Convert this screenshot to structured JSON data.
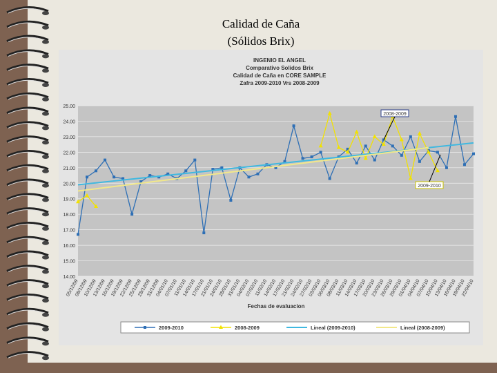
{
  "slide_title": [
    "Calidad de Caña",
    "(Sólidos Brix)"
  ],
  "chart_data": {
    "type": "line",
    "title": [
      "INGENIO EL ANGEL",
      "Comparativo Solidos Brix",
      "Calidad de Caña en CORE SAMPLE",
      "Zafra 2009-2010 Vrs 2008-2009"
    ],
    "x_label": "Fechas de evaluacion",
    "categories": [
      "05/12/09",
      "08/12/09",
      "10/12/09",
      "13/12/09",
      "16/12/09",
      "19/12/09",
      "22/12/09",
      "25/12/09",
      "28/12/09",
      "31/12/09",
      "04/01/10",
      "07/01/10",
      "11/01/10",
      "14/01/10",
      "17/01/10",
      "21/01/10",
      "24/01/10",
      "28/01/10",
      "31/01/10",
      "04/02/10",
      "07/02/10",
      "11/02/10",
      "14/02/10",
      "17/02/10",
      "21/02/10",
      "24/02/10",
      "27/02/10",
      "03/03/10",
      "06/03/10",
      "08/03/10",
      "11/03/10",
      "14/03/10",
      "17/03/10",
      "20/03/10",
      "23/03/10",
      "26/03/10",
      "29/03/10",
      "01/04/10",
      "04/04/10",
      "07/04/10",
      "10/04/10",
      "13/04/10",
      "16/04/10",
      "19/04/10",
      "22/04/10"
    ],
    "series": [
      {
        "name": "2009-2010",
        "color": "#2e6fb5",
        "marker": "square",
        "values": [
          16.7,
          20.4,
          20.8,
          21.5,
          20.4,
          20.3,
          18.0,
          20.1,
          20.5,
          20.4,
          20.6,
          20.3,
          20.8,
          21.5,
          16.8,
          20.9,
          21.0,
          18.9,
          21.0,
          20.4,
          20.6,
          21.2,
          21.0,
          21.4,
          23.7,
          21.6,
          21.7,
          22.0,
          20.3,
          21.7,
          22.2,
          21.3,
          22.4,
          21.5,
          22.8,
          22.4,
          21.8,
          23.0,
          21.4,
          22.1,
          22.0,
          21.0,
          24.3,
          21.2,
          21.9
        ]
      },
      {
        "name": "2008-2009",
        "color": "#f2e200",
        "marker": "triangle",
        "values": [
          18.8,
          19.2,
          18.5,
          null,
          null,
          null,
          null,
          null,
          null,
          null,
          null,
          null,
          null,
          null,
          null,
          null,
          null,
          null,
          null,
          null,
          null,
          null,
          null,
          null,
          null,
          null,
          null,
          22.4,
          24.5,
          22.3,
          22.0,
          23.3,
          21.6,
          23.0,
          22.5,
          24.3,
          22.8,
          20.3,
          23.2,
          22.0,
          20.8,
          null,
          null,
          null,
          null
        ]
      },
      {
        "name": "Lineal (2009-2010)",
        "color": "#3fb8e0",
        "trend": true,
        "x": [
          "05/12/09",
          "22/04/10"
        ],
        "values": [
          19.9,
          22.6
        ]
      },
      {
        "name": "Lineal (2008-2009)",
        "color": "#f2e88a",
        "trend": true,
        "x": [
          "05/12/09",
          "07/04/10"
        ],
        "values": [
          19.5,
          22.3
        ]
      }
    ],
    "ylim": [
      14,
      25
    ],
    "yticks": [
      {
        "value": 14,
        "label": "14.00"
      },
      {
        "value": 15,
        "label": "15.00"
      },
      {
        "value": 16,
        "label": "16.00"
      },
      {
        "value": 17,
        "label": "17.00"
      },
      {
        "value": 18,
        "label": "18.00"
      },
      {
        "value": 19,
        "label": "19.00"
      },
      {
        "value": 20,
        "label": "20.00"
      },
      {
        "value": 21,
        "label": "21.00"
      },
      {
        "value": 22,
        "label": "22.00"
      },
      {
        "value": 23,
        "label": "23.00"
      },
      {
        "value": 24,
        "label": "24.00"
      },
      {
        "value": 25,
        "label": "25.00"
      }
    ],
    "grid": true,
    "legend": "bottom",
    "annotations": [
      {
        "text": "2008-2009"
      },
      {
        "text": "2009-2010"
      }
    ]
  }
}
